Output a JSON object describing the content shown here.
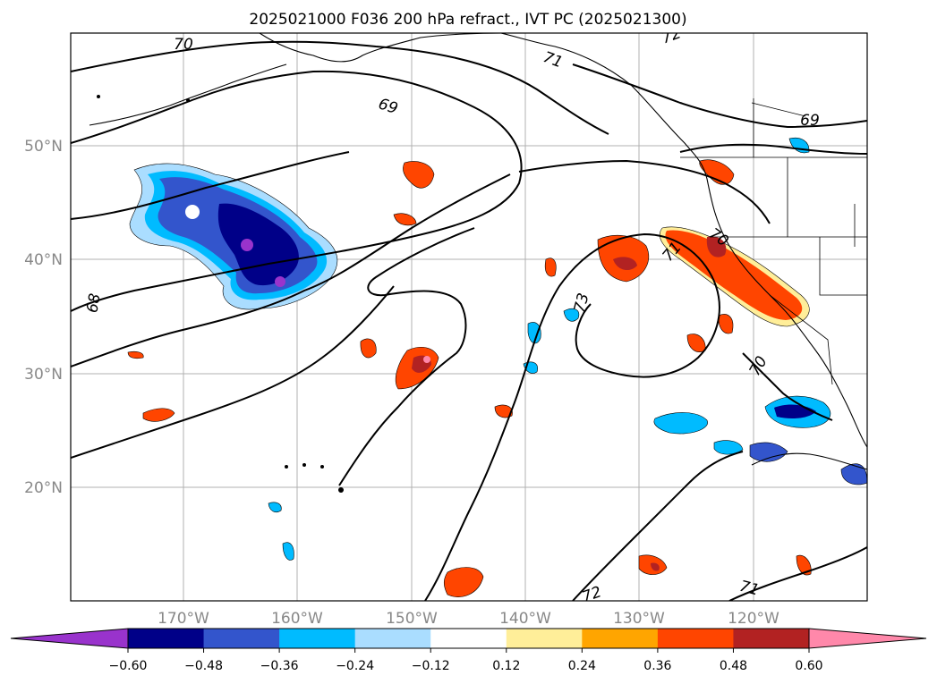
{
  "title": "2025021000 F036 200 hPa refract., IVT PC (2025021300)",
  "lat_labels": [
    "50°N",
    "40°N",
    "30°N",
    "20°N"
  ],
  "lon_labels": [
    "170°W",
    "160°W",
    "150°W",
    "140°W",
    "130°W",
    "120°W"
  ],
  "contour_labels": [
    "70",
    "69",
    "68",
    "71",
    "72",
    "69",
    "70",
    "71",
    "73",
    "70",
    "72",
    "71"
  ],
  "colorbar": {
    "ticks": [
      "−0.60",
      "−0.48",
      "−0.36",
      "−0.24",
      "−0.12",
      "0.12",
      "0.24",
      "0.36",
      "0.48",
      "0.60"
    ],
    "colors": [
      "#9933cc",
      "#000088",
      "#3355cc",
      "#00bbff",
      "#aaddff",
      "#ffffff",
      "#ffee99",
      "#ffa500",
      "#ff4500",
      "#b22222",
      "#ff88aa",
      "#ff88aa"
    ]
  },
  "anomaly_colors": {
    "neg_light": "#aaddff",
    "neg_cyan": "#00bbff",
    "neg_blue": "#3355cc",
    "neg_navy": "#000088",
    "neg_purple": "#9933cc",
    "pos_yellow": "#ffee99",
    "pos_orange": "#ffa500",
    "pos_red": "#ff4500",
    "pos_dark": "#b22222",
    "pos_pink": "#ff88aa"
  }
}
